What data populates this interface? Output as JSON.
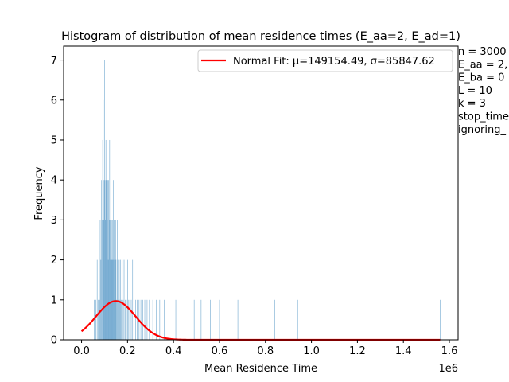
{
  "chart_data": {
    "type": "bar",
    "title": "Histogram of distribution of mean residence times (E_aa=2, E_ad=1)",
    "xlabel": "Mean Residence Time",
    "ylabel": "Frequency",
    "x_offset_label": "1e6",
    "xlim": [
      -0.078,
      1.638
    ],
    "ylim": [
      0,
      7.35
    ],
    "x_ticks": [
      0.0,
      0.2,
      0.4,
      0.6,
      0.8,
      1.0,
      1.2,
      1.4,
      1.6
    ],
    "x_tick_labels": [
      "0.0",
      "0.2",
      "0.4",
      "0.6",
      "0.8",
      "1.0",
      "1.2",
      "1.4",
      "1.6"
    ],
    "y_ticks": [
      0,
      1,
      2,
      3,
      4,
      5,
      6,
      7
    ],
    "y_tick_labels": [
      "0",
      "1",
      "2",
      "3",
      "4",
      "5",
      "6",
      "7"
    ],
    "bar_color": "#1f77b4",
    "fit_color": "#ff0000",
    "legend": {
      "label": "Normal Fit: μ=149154.49, σ=85847.62",
      "position": "top-right"
    },
    "normal_fit": {
      "mu": 149154.49,
      "sigma": 85847.62,
      "x_range": [
        0.0,
        1.56
      ],
      "peak_frequency": 0.97
    },
    "hist_bins_1e6": [
      [
        0.055,
        1
      ],
      [
        0.062,
        1
      ],
      [
        0.068,
        2
      ],
      [
        0.072,
        1
      ],
      [
        0.076,
        2
      ],
      [
        0.078,
        1
      ],
      [
        0.081,
        3
      ],
      [
        0.084,
        2
      ],
      [
        0.087,
        4
      ],
      [
        0.089,
        3
      ],
      [
        0.092,
        5
      ],
      [
        0.094,
        6
      ],
      [
        0.096,
        3
      ],
      [
        0.098,
        4
      ],
      [
        0.1,
        7
      ],
      [
        0.102,
        4
      ],
      [
        0.104,
        3
      ],
      [
        0.106,
        5
      ],
      [
        0.108,
        4
      ],
      [
        0.11,
        6
      ],
      [
        0.112,
        3
      ],
      [
        0.114,
        4
      ],
      [
        0.116,
        2
      ],
      [
        0.118,
        4
      ],
      [
        0.12,
        3
      ],
      [
        0.122,
        5
      ],
      [
        0.124,
        3
      ],
      [
        0.126,
        2
      ],
      [
        0.128,
        4
      ],
      [
        0.13,
        3
      ],
      [
        0.132,
        2
      ],
      [
        0.134,
        3
      ],
      [
        0.136,
        2
      ],
      [
        0.138,
        4
      ],
      [
        0.14,
        2
      ],
      [
        0.142,
        3
      ],
      [
        0.144,
        1
      ],
      [
        0.146,
        2
      ],
      [
        0.148,
        3
      ],
      [
        0.15,
        2
      ],
      [
        0.152,
        1
      ],
      [
        0.155,
        3
      ],
      [
        0.158,
        2
      ],
      [
        0.161,
        1
      ],
      [
        0.164,
        2
      ],
      [
        0.167,
        1
      ],
      [
        0.17,
        2
      ],
      [
        0.173,
        1
      ],
      [
        0.177,
        2
      ],
      [
        0.181,
        1
      ],
      [
        0.185,
        2
      ],
      [
        0.19,
        1
      ],
      [
        0.195,
        1
      ],
      [
        0.2,
        2
      ],
      [
        0.205,
        1
      ],
      [
        0.21,
        1
      ],
      [
        0.216,
        1
      ],
      [
        0.222,
        2
      ],
      [
        0.228,
        1
      ],
      [
        0.235,
        1
      ],
      [
        0.242,
        1
      ],
      [
        0.25,
        1
      ],
      [
        0.258,
        1
      ],
      [
        0.266,
        1
      ],
      [
        0.275,
        1
      ],
      [
        0.285,
        1
      ],
      [
        0.295,
        1
      ],
      [
        0.31,
        1
      ],
      [
        0.325,
        1
      ],
      [
        0.34,
        1
      ],
      [
        0.36,
        1
      ],
      [
        0.38,
        1
      ],
      [
        0.41,
        1
      ],
      [
        0.45,
        1
      ],
      [
        0.49,
        1
      ],
      [
        0.52,
        1
      ],
      [
        0.56,
        1
      ],
      [
        0.6,
        1
      ],
      [
        0.65,
        1
      ],
      [
        0.68,
        1
      ],
      [
        0.84,
        1
      ],
      [
        0.94,
        1
      ],
      [
        1.56,
        1
      ]
    ],
    "annotation_lines": [
      "n = 3000",
      "E_aa = 2,",
      "E_ba = 0",
      "L = 10",
      "k = 3",
      "stop_time",
      "ignoring_"
    ]
  }
}
